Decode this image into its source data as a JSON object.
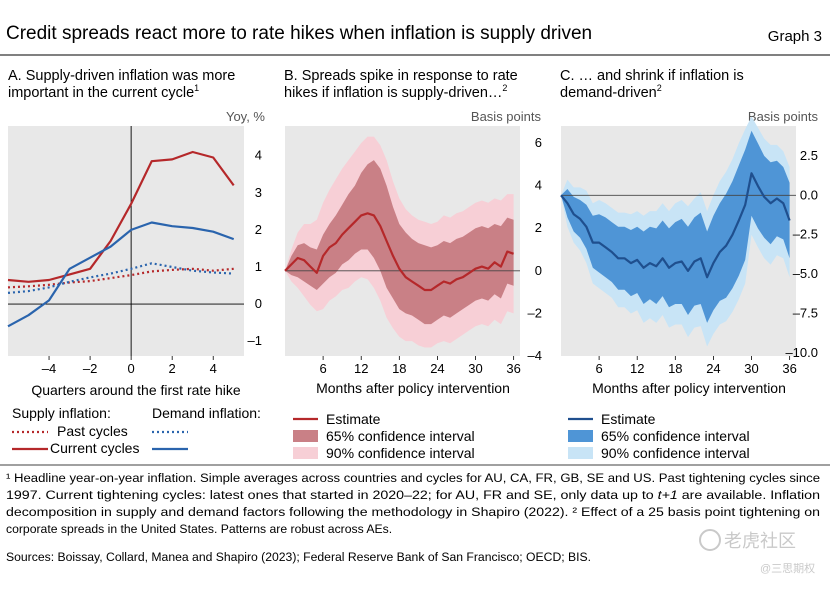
{
  "header": {
    "title": "Credit spreads react more to rate hikes when inflation is supply driven",
    "graph_label": "Graph 3"
  },
  "chart_data": [
    {
      "type": "line",
      "panel_title": [
        "A. Supply-driven inflation was more",
        "important in the current cycle"
      ],
      "title_superscript": "1",
      "unit_label": "Yoy, %",
      "xlabel": "Quarters around the first rate hike",
      "xlim": [
        -6,
        5.5
      ],
      "ylim": [
        -1.4,
        4.8
      ],
      "x_ticks": [
        -4,
        -2,
        0,
        2,
        4
      ],
      "y_ticks": [
        4,
        3,
        2,
        1,
        0,
        -1
      ],
      "vertical_line_at": 0,
      "horizontal_line_at": 0,
      "colors": {
        "supply": "#b5282a",
        "demand": "#2a64ad"
      },
      "series": [
        {
          "name": "Past cycles",
          "group": "Supply inflation",
          "style": "dotted",
          "color": "#b5282a",
          "x": [
            -6,
            -5,
            -4,
            -3,
            -2,
            -1,
            0,
            1,
            2,
            3,
            4,
            5
          ],
          "y": [
            0.45,
            0.48,
            0.52,
            0.58,
            0.62,
            0.7,
            0.78,
            0.88,
            0.92,
            0.95,
            0.9,
            0.95
          ]
        },
        {
          "name": "Current cycles",
          "group": "Supply inflation",
          "style": "solid",
          "color": "#b5282a",
          "x": [
            -6,
            -5,
            -4,
            -3,
            -2,
            -1,
            0,
            1,
            2,
            3,
            4,
            5
          ],
          "y": [
            0.65,
            0.6,
            0.65,
            0.8,
            0.95,
            1.7,
            2.7,
            3.85,
            3.9,
            4.1,
            3.95,
            3.2
          ]
        },
        {
          "name": "Past cycles",
          "group": "Demand inflation",
          "style": "dotted",
          "color": "#2a64ad",
          "x": [
            -6,
            -5,
            -4,
            -3,
            -2,
            -1,
            0,
            1,
            2,
            3,
            4,
            5
          ],
          "y": [
            0.3,
            0.35,
            0.45,
            0.6,
            0.72,
            0.82,
            0.95,
            1.1,
            1.0,
            0.9,
            0.85,
            0.82
          ]
        },
        {
          "name": "Current cycles",
          "group": "Demand inflation",
          "style": "solid",
          "color": "#2a64ad",
          "x": [
            -6,
            -5,
            -4,
            -3,
            -2,
            -1,
            0,
            1,
            2,
            3,
            4,
            5
          ],
          "y": [
            -0.6,
            -0.3,
            0.1,
            0.95,
            1.25,
            1.55,
            2.0,
            2.2,
            2.1,
            2.05,
            1.95,
            1.75
          ]
        }
      ]
    },
    {
      "type": "area",
      "panel_title": [
        "B. Spreads spike in response to rate",
        "hikes if inflation is supply-driven…"
      ],
      "title_superscript": "2",
      "unit_label": "Basis points",
      "xlabel": "Months after policy intervention",
      "xlim": [
        0,
        37
      ],
      "ylim": [
        -4.0,
        6.8
      ],
      "x_ticks": [
        6,
        12,
        18,
        24,
        30,
        36
      ],
      "y_ticks": [
        6,
        4,
        2,
        0,
        -2,
        -4
      ],
      "horizontal_line_at": 0,
      "colors": {
        "estimate": "#b5282a",
        "ci65": "#c98086",
        "ci90": "#f7cfd6"
      },
      "x": [
        0,
        1,
        2,
        3,
        4,
        5,
        6,
        7,
        8,
        9,
        10,
        11,
        12,
        13,
        14,
        15,
        16,
        17,
        18,
        19,
        20,
        21,
        22,
        23,
        24,
        25,
        26,
        27,
        28,
        29,
        30,
        31,
        32,
        33,
        34,
        35,
        36
      ],
      "estimate": [
        0,
        0.3,
        0.6,
        0.5,
        0.2,
        -0.1,
        0.7,
        1.1,
        1.3,
        1.7,
        2.0,
        2.3,
        2.6,
        2.7,
        2.6,
        2.1,
        1.4,
        0.7,
        0.1,
        -0.3,
        -0.5,
        -0.7,
        -0.9,
        -0.9,
        -0.7,
        -0.5,
        -0.6,
        -0.4,
        -0.3,
        -0.1,
        0.1,
        0.2,
        0.1,
        0.4,
        0.2,
        0.9,
        0.8
      ],
      "ci65_upper": [
        0,
        0.7,
        1.2,
        1.3,
        1.1,
        1.0,
        1.7,
        2.2,
        2.6,
        3.1,
        3.6,
        4.0,
        4.6,
        5.0,
        5.2,
        4.8,
        4.0,
        3.0,
        2.2,
        1.8,
        1.5,
        1.3,
        1.2,
        1.1,
        1.2,
        1.4,
        1.3,
        1.5,
        1.6,
        1.8,
        2.0,
        2.1,
        2.0,
        2.2,
        2.1,
        2.5,
        2.4
      ],
      "ci65_lower": [
        0,
        -0.2,
        -0.3,
        -0.5,
        -0.7,
        -0.9,
        -0.6,
        -0.3,
        -0.1,
        0.3,
        0.5,
        0.8,
        1.0,
        1.0,
        0.6,
        0.0,
        -0.8,
        -1.3,
        -1.8,
        -2.0,
        -2.1,
        -2.3,
        -2.5,
        -2.5,
        -2.3,
        -2.1,
        -2.2,
        -2.0,
        -1.8,
        -1.6,
        -1.4,
        -1.3,
        -1.4,
        -1.1,
        -1.3,
        -0.6,
        -0.7
      ],
      "ci90_upper": [
        0,
        1.0,
        1.8,
        2.2,
        2.2,
        2.4,
        3.2,
        3.8,
        4.3,
        4.8,
        5.2,
        5.6,
        6.0,
        6.3,
        6.3,
        5.9,
        5.2,
        4.2,
        3.4,
        2.9,
        2.6,
        2.4,
        2.3,
        2.2,
        2.3,
        2.6,
        2.5,
        2.7,
        2.8,
        3.0,
        3.2,
        3.3,
        3.2,
        3.4,
        3.3,
        3.6,
        3.6
      ],
      "ci90_lower": [
        0,
        -0.5,
        -0.8,
        -1.2,
        -1.6,
        -1.9,
        -1.8,
        -1.4,
        -1.2,
        -0.9,
        -0.8,
        -0.5,
        -0.3,
        -0.4,
        -0.8,
        -1.4,
        -2.2,
        -2.7,
        -3.1,
        -3.3,
        -3.3,
        -3.5,
        -3.6,
        -3.6,
        -3.4,
        -3.3,
        -3.4,
        -3.2,
        -3.0,
        -2.8,
        -2.6,
        -2.5,
        -2.6,
        -2.3,
        -2.5,
        -1.9,
        -2.0
      ]
    },
    {
      "type": "area",
      "panel_title": [
        "C. … and shrink if inflation is",
        "demand-driven"
      ],
      "title_superscript": "2",
      "unit_label": "Basis points",
      "xlabel": "Months after policy intervention",
      "xlim": [
        0,
        37
      ],
      "ylim": [
        -10.2,
        4.4
      ],
      "x_ticks": [
        6,
        12,
        18,
        24,
        30,
        36
      ],
      "y_ticks": [
        "2.5",
        "0.0",
        "–2.5",
        "–5.0",
        "–7.5",
        "–10.0"
      ],
      "y_tick_values": [
        2.5,
        0,
        -2.5,
        -5,
        -7.5,
        -10
      ],
      "horizontal_line_at": 0,
      "colors": {
        "estimate": "#1f4f8e",
        "ci65": "#4f95d6",
        "ci90": "#c8e4f6"
      },
      "x": [
        0,
        1,
        2,
        3,
        4,
        5,
        6,
        7,
        8,
        9,
        10,
        11,
        12,
        13,
        14,
        15,
        16,
        17,
        18,
        19,
        20,
        21,
        22,
        23,
        24,
        25,
        26,
        27,
        28,
        29,
        30,
        31,
        32,
        33,
        34,
        35,
        36
      ],
      "estimate": [
        0,
        -0.5,
        -1.2,
        -1.5,
        -2.0,
        -3.0,
        -3.0,
        -3.3,
        -3.6,
        -4.0,
        -4.0,
        -4.3,
        -4.1,
        -4.6,
        -4.3,
        -4.5,
        -4.0,
        -4.6,
        -4.3,
        -4.2,
        -4.8,
        -4.2,
        -4.0,
        -5.2,
        -4.3,
        -3.6,
        -3.2,
        -2.5,
        -1.6,
        -0.6,
        1.4,
        0.6,
        -0.1,
        -0.5,
        -0.2,
        -0.5,
        -1.6
      ],
      "ci65_upper": [
        0,
        0.4,
        -0.1,
        -0.3,
        -0.6,
        -1.3,
        -1.2,
        -1.4,
        -1.7,
        -2.0,
        -2.0,
        -2.2,
        -2.0,
        -2.3,
        -2.0,
        -2.1,
        -1.6,
        -2.1,
        -1.7,
        -1.5,
        -2.0,
        -1.4,
        -1.1,
        -2.3,
        -1.3,
        -0.5,
        0.1,
        0.9,
        1.9,
        2.9,
        4.1,
        3.3,
        2.5,
        2.1,
        2.2,
        1.8,
        0.8
      ],
      "ci65_lower": [
        0,
        -1.4,
        -2.3,
        -2.7,
        -3.4,
        -4.6,
        -4.9,
        -5.2,
        -5.5,
        -6.0,
        -6.0,
        -6.4,
        -6.2,
        -6.9,
        -6.6,
        -6.9,
        -6.4,
        -7.1,
        -6.9,
        -6.9,
        -7.6,
        -7.0,
        -6.9,
        -8.1,
        -7.3,
        -6.7,
        -6.5,
        -5.9,
        -5.1,
        -4.1,
        -1.3,
        -2.1,
        -2.7,
        -3.1,
        -2.6,
        -2.8,
        -4.0
      ],
      "ci90_upper": [
        0,
        1.0,
        0.5,
        0.5,
        0.3,
        -0.5,
        -0.3,
        -0.5,
        -0.8,
        -1.1,
        -1.1,
        -1.2,
        -1.0,
        -1.3,
        -1.0,
        -1.0,
        -0.5,
        -1.0,
        -0.5,
        -0.3,
        -0.7,
        -0.2,
        0.2,
        -1.0,
        0.0,
        0.9,
        1.5,
        2.3,
        3.3,
        4.2,
        5.0,
        4.3,
        3.6,
        3.2,
        3.2,
        2.8,
        1.8
      ],
      "ci90_lower": [
        0,
        -2.0,
        -3.0,
        -3.5,
        -4.3,
        -5.6,
        -5.9,
        -6.2,
        -6.5,
        -7.1,
        -7.1,
        -7.5,
        -7.3,
        -8.1,
        -7.8,
        -8.1,
        -7.6,
        -8.4,
        -8.2,
        -8.2,
        -9.0,
        -8.4,
        -8.3,
        -9.6,
        -8.8,
        -8.2,
        -8.0,
        -7.4,
        -6.6,
        -5.6,
        -2.5,
        -3.3,
        -4.0,
        -4.4,
        -3.8,
        -4.0,
        -5.2
      ]
    }
  ],
  "legend_a": {
    "supply_header": "Supply inflation:",
    "demand_header": "Demand inflation:",
    "past_label": "Past cycles",
    "current_label": "Current cycles"
  },
  "legend_b": {
    "estimate": "Estimate",
    "ci65": "65% confidence interval",
    "ci90": "90% confidence interval"
  },
  "legend_c": {
    "estimate": "Estimate",
    "ci65": "65% confidence interval",
    "ci90": "90% confidence interval"
  },
  "footnotes": {
    "line1": "¹  Headline year-on-year inflation. Simple averages across countries and cycles for AU, CA, FR, GB, SE and US. Past tightening cycles since",
    "line2": "1997. Current tightening cycles: latest ones that started in 2020–22; for AU, FR and SE, only data up to",
    "line2_italic": "t+1",
    "line2_end": "are available. Inflation",
    "line3": "decomposition in supply and demand factors following the methodology in Shapiro (2022).   ²  Effect of a 25 basis point tightening on",
    "line4": "corporate spreads in the United States. Patterns are robust across AEs."
  },
  "sources": "Sources: Boissay, Collard, Manea and Shapiro (2023); Federal Reserve Bank of San Francisco; OECD; BIS.",
  "watermark": {
    "text": "老虎社区",
    "subtext": "@三思期权"
  }
}
